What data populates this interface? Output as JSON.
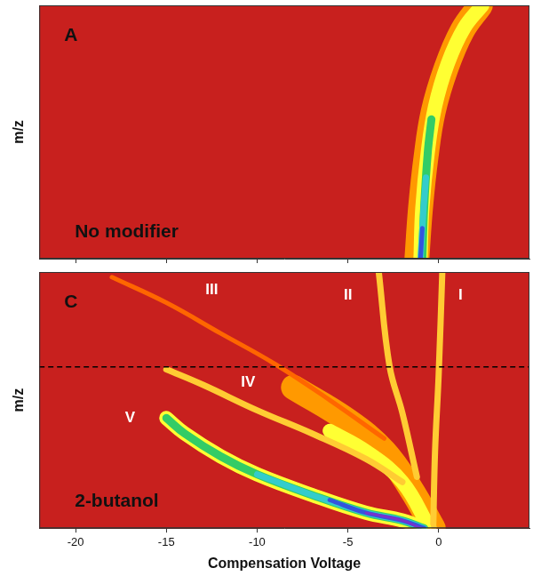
{
  "chart_data": [
    {
      "type": "line",
      "panel_label": "A",
      "subtitle": "No modifier",
      "y_label": "m/z",
      "color": "#c8201e",
      "grid": false,
      "tick_labels": false,
      "xlim": [
        -22,
        5
      ],
      "xticks": [
        -20,
        -15,
        -10,
        -5,
        0
      ],
      "ylim": [
        0,
        100
      ],
      "series": [
        {
          "color": "#ff9900",
          "x": [
            -1.2,
            -1.0,
            -0.7,
            -0.3,
            0.4,
            1.3,
            2.3
          ],
          "values": [
            0,
            20,
            40,
            58,
            75,
            90,
            100
          ]
        },
        {
          "color": "#ffff33",
          "x": [
            -1.0,
            -0.9,
            -0.6,
            -0.2,
            0.5,
            1.4,
            2.4
          ],
          "values": [
            0,
            20,
            42,
            60,
            77,
            91,
            100
          ]
        },
        {
          "color": "#33cc66",
          "x": [
            -0.9,
            -0.8,
            -0.6,
            -0.4
          ],
          "values": [
            0,
            20,
            42,
            55
          ]
        },
        {
          "color": "#33cccc",
          "x": [
            -1.0,
            -0.85,
            -0.7
          ],
          "values": [
            0,
            18,
            32
          ]
        },
        {
          "color": "#3355dd",
          "x": [
            -1.0,
            -0.9
          ],
          "values": [
            0,
            12
          ]
        }
      ]
    },
    {
      "type": "line",
      "panel_label": "C",
      "subtitle": "2-butanol",
      "y_label": "m/z",
      "x_label": "Compensation Voltage",
      "color": "#c8201e",
      "grid": false,
      "tick_labels": "x",
      "xlim": [
        -22,
        5
      ],
      "xticks": [
        -20,
        -15,
        -10,
        -5,
        0
      ],
      "ylim": [
        0,
        100
      ],
      "annotations": [
        {
          "text": "I",
          "x": 1.2,
          "y": 91
        },
        {
          "text": "II",
          "x": -5,
          "y": 91
        },
        {
          "text": "III",
          "x": -12.5,
          "y": 93
        },
        {
          "text": "IV",
          "x": -10.5,
          "y": 57
        },
        {
          "text": "V",
          "x": -17,
          "y": 43
        }
      ],
      "series": [
        {
          "color": "#ff9900",
          "x": [
            -0.3,
            -1.5,
            -3,
            -5,
            -8
          ],
          "values": [
            0,
            15,
            30,
            42,
            55
          ]
        },
        {
          "color": "#ffff33",
          "x": [
            -0.5,
            -2,
            -4,
            -6
          ],
          "values": [
            0,
            18,
            30,
            38
          ]
        },
        {
          "color": "#ff6600",
          "x": [
            -3,
            -6,
            -9,
            -12,
            -15,
            -18
          ],
          "values": [
            35,
            50,
            64,
            76,
            88,
            98
          ]
        },
        {
          "color": "#ffcc33",
          "x": [
            -2,
            -4,
            -7,
            -10,
            -13,
            -15
          ],
          "values": [
            18,
            27,
            37,
            46,
            56,
            62
          ]
        },
        {
          "color": "#ffcc33",
          "x": [
            -1.2,
            -2,
            -2.7,
            -3.3
          ],
          "values": [
            20,
            45,
            63,
            100
          ]
        },
        {
          "color": "#ffcc33",
          "x": [
            -0.3,
            -0.2,
            0,
            0.2
          ],
          "values": [
            0,
            30,
            60,
            100
          ]
        },
        {
          "color": "#ffff33",
          "x": [
            -0.8,
            -2,
            -4,
            -7,
            -10,
            -12,
            -14,
            -15
          ],
          "values": [
            0,
            3,
            6,
            13,
            21,
            28,
            37,
            43
          ]
        },
        {
          "color": "#33cc66",
          "x": [
            -0.8,
            -2,
            -4,
            -7,
            -10,
            -12,
            -14,
            -15
          ],
          "values": [
            0,
            3,
            6,
            13,
            21,
            28,
            37,
            43
          ]
        },
        {
          "color": "#33cccc",
          "x": [
            -0.8,
            -2,
            -4,
            -7,
            -10
          ],
          "values": [
            0,
            3,
            6,
            13,
            21
          ]
        },
        {
          "color": "#3355dd",
          "x": [
            -0.8,
            -2,
            -4,
            -6
          ],
          "values": [
            0,
            3,
            6,
            11
          ]
        },
        {
          "color": "#7733cc",
          "x": [
            -1,
            -2,
            -4
          ],
          "values": [
            0,
            3,
            6
          ]
        },
        {
          "color": "#000000",
          "line_style": "dashed",
          "x": [
            -22,
            5
          ],
          "values": [
            63,
            63
          ]
        }
      ]
    }
  ]
}
